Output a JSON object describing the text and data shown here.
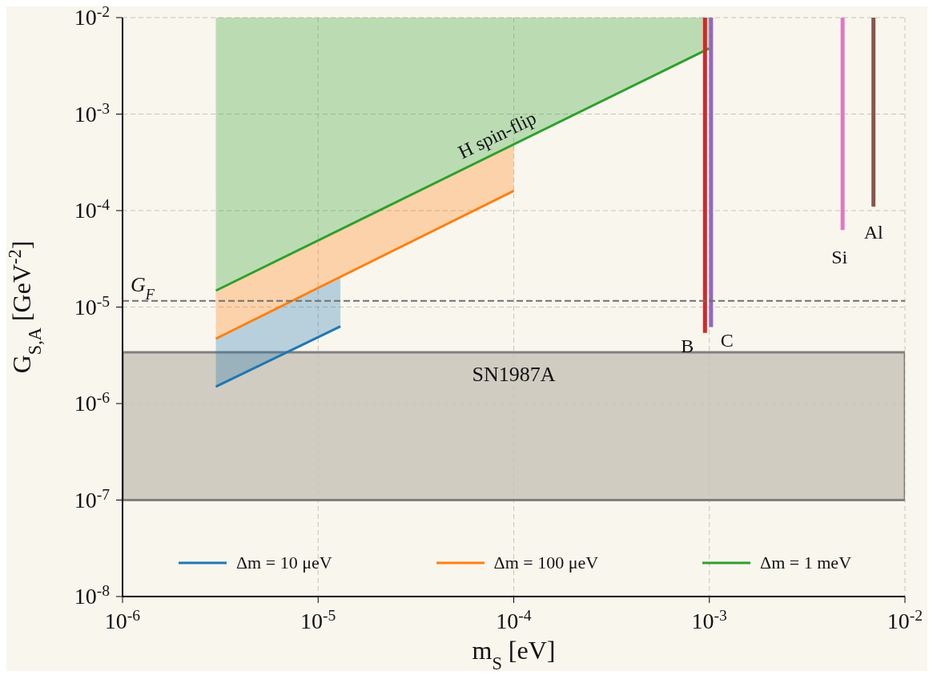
{
  "chart_data": {
    "type": "line",
    "xlabel": "m$_{S}$ [eV]",
    "ylabel": "G$_{S,A}$ [GeV$^{-2}$]",
    "log": "xy",
    "xlim": [
      1e-06,
      0.01
    ],
    "ylim": [
      1e-08,
      0.01
    ],
    "xticks": [
      {
        "value": 1e-06,
        "label": "10$^{-6}$"
      },
      {
        "value": 1e-05,
        "label": "10$^{-5}$"
      },
      {
        "value": 0.0001,
        "label": "10$^{-4}$"
      },
      {
        "value": 0.001,
        "label": "10$^{-3}$"
      },
      {
        "value": 0.01,
        "label": "10$^{-2}$"
      }
    ],
    "yticks": [
      {
        "value": 1e-08,
        "label": "10$^{-8}$"
      },
      {
        "value": 1e-07,
        "label": "10$^{-7}$"
      },
      {
        "value": 1e-06,
        "label": "10$^{-6}$"
      },
      {
        "value": 1e-05,
        "label": "10$^{-5}$"
      },
      {
        "value": 0.0001,
        "label": "10$^{-4}$"
      },
      {
        "value": 0.001,
        "label": "10$^{-3}$"
      },
      {
        "value": 0.01,
        "label": "10$^{-2}$"
      }
    ],
    "grid": true,
    "legend": "bottom",
    "series": [
      {
        "name": "Δm = 10 μeV",
        "color": "#1f77b4",
        "x": [
          3e-06,
          1.3e-05
        ],
        "values": [
          1.5e-06,
          6.3e-06
        ],
        "lower": [
          1.5e-06,
          6.3e-06
        ],
        "upper": [
          4.7e-06,
          2e-05
        ]
      },
      {
        "name": "Δm = 100 μeV",
        "color": "#ff7f0e",
        "x": [
          3e-06,
          0.0001
        ],
        "values": [
          4.7e-06,
          0.00016
        ],
        "lower": [
          4.7e-06,
          0.00016
        ],
        "upper": [
          1.43e-05,
          0.00049
        ]
      },
      {
        "name": "Δm = 1 meV",
        "color": "#2ca02c",
        "x": [
          3e-06,
          0.001
        ],
        "values": [
          1.48e-05,
          0.0048
        ],
        "lower": [
          1.48e-05,
          0.0048
        ],
        "upper": [
          0.01,
          0.01
        ]
      },
      {
        "color": "#d62728",
        "x": [
          0.00095,
          0.00095
        ],
        "values": [
          5.4e-06,
          0.01
        ]
      },
      {
        "color": "#9467bd",
        "x": [
          0.00102,
          0.00102
        ],
        "values": [
          6.2e-06,
          0.01
        ]
      },
      {
        "color": "#e377c2",
        "x": [
          0.0048,
          0.0048
        ],
        "values": [
          6.3e-05,
          0.01
        ]
      },
      {
        "color": "#8c564b",
        "x": [
          0.0069,
          0.0069
        ],
        "values": [
          0.00011,
          0.01
        ]
      }
    ],
    "ref_lines": [
      {
        "axis": "y",
        "value": 1.16e-05,
        "label": "G$_{F}$",
        "color": "#707070",
        "line_style": "dashed"
      }
    ],
    "bands": [
      {
        "axis": "y",
        "from": 1e-07,
        "to": 3.4e-06,
        "label": "SN1987A",
        "color": "#c9c4b8"
      }
    ],
    "annotations": [
      "H spin-flip",
      "B",
      "C",
      "Si",
      "Al"
    ]
  }
}
